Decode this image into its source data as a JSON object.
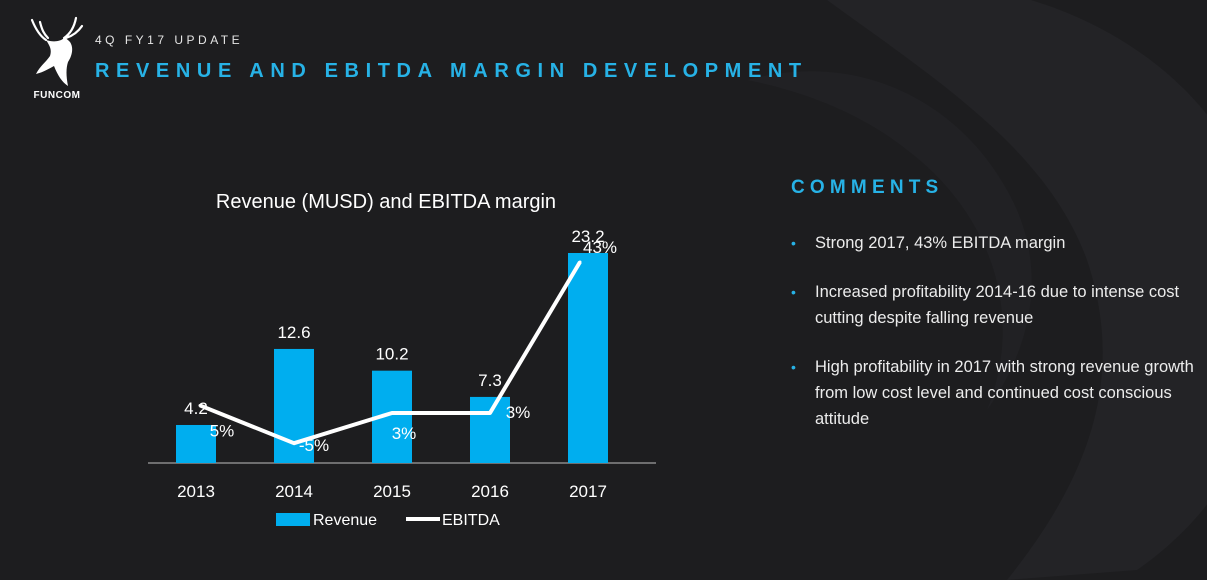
{
  "header": {
    "subtitle": "4Q FY17 UPDATE",
    "title": "REVENUE AND EBITDA MARGIN DEVELOPMENT",
    "logo_text": "FUNCOM"
  },
  "colors": {
    "accent": "#27b2e6",
    "bar": "#00aeef",
    "line": "#ffffff",
    "background": "#1d1d1f"
  },
  "chart_data": {
    "type": "bar",
    "title": "Revenue (MUSD) and EBITDA margin",
    "categories": [
      "2013",
      "2014",
      "2015",
      "2016",
      "2017"
    ],
    "series": [
      {
        "name": "Revenue",
        "type": "bar",
        "values": [
          4.2,
          12.6,
          10.2,
          7.3,
          23.2
        ],
        "labels": [
          "4.2",
          "12.6",
          "10.2",
          "7.3",
          "23.2"
        ]
      },
      {
        "name": "EBITDA",
        "type": "line",
        "values": [
          5,
          -5,
          3,
          3,
          43
        ],
        "labels": [
          "5%",
          "-5%",
          "3%",
          "3%",
          "43%"
        ]
      }
    ],
    "ylim": [
      0,
      23.2
    ],
    "grid": false,
    "legend": "bottom"
  },
  "comments": {
    "title": "COMMENTS",
    "items": [
      "Strong 2017, 43% EBITDA margin",
      "Increased profitability 2014-16 due to intense cost cutting despite falling revenue",
      "High profitability in 2017 with strong revenue growth from low cost level and continued cost conscious attitude"
    ],
    "bullet": "•"
  }
}
